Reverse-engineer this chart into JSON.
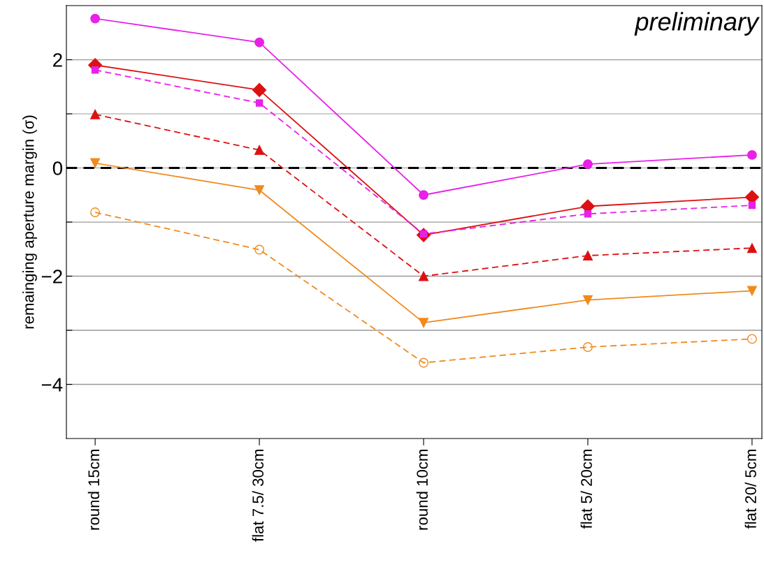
{
  "chart_data": {
    "type": "line",
    "ylabel": "remainging aperture margin (σ)",
    "categories": [
      "round 15cm",
      "flat 7.5/ 30cm",
      "round 10cm",
      "flat 5/ 20cm",
      "flat 20/ 5cm"
    ],
    "series": [
      {
        "color": "#e820e8",
        "marker": "circle",
        "line_style": "solid",
        "values": [
          2.76,
          2.32,
          -0.5,
          0.07,
          0.24
        ]
      },
      {
        "color": "#dd1111",
        "marker": "diamond",
        "line_style": "solid",
        "values": [
          1.9,
          1.44,
          -1.24,
          -0.71,
          -0.54
        ]
      },
      {
        "color": "#e820e8",
        "marker": "square",
        "line_style": "dashed",
        "values": [
          1.81,
          1.2,
          -1.22,
          -0.85,
          -0.69
        ]
      },
      {
        "color": "#dd1111",
        "marker": "triangle",
        "line_style": "dashed",
        "values": [
          0.99,
          0.33,
          -2.0,
          -1.62,
          -1.48
        ]
      },
      {
        "color": "#f08a1e",
        "marker": "triangle_down",
        "line_style": "solid",
        "values": [
          0.09,
          -0.41,
          -2.86,
          -2.44,
          -2.27
        ]
      },
      {
        "color": "#f08a1e",
        "marker": "circle",
        "line_style": "dashed",
        "values": [
          -0.82,
          -1.51,
          -3.6,
          -3.31,
          -3.16
        ]
      }
    ],
    "ylim": [
      -5,
      3
    ],
    "yticks": [
      {
        "value": -4,
        "label": "−4"
      },
      {
        "value": -3,
        "label": null
      },
      {
        "value": -2,
        "label": "−2"
      },
      {
        "value": -1,
        "label": null
      },
      0,
      {
        "value": 1,
        "label": null
      },
      2
    ],
    "grid": "y",
    "ref_lines": [
      {
        "axis": "y",
        "value": 0,
        "color": "#000000",
        "line_style": "dashed"
      }
    ],
    "annotations": [
      "preliminary"
    ]
  }
}
